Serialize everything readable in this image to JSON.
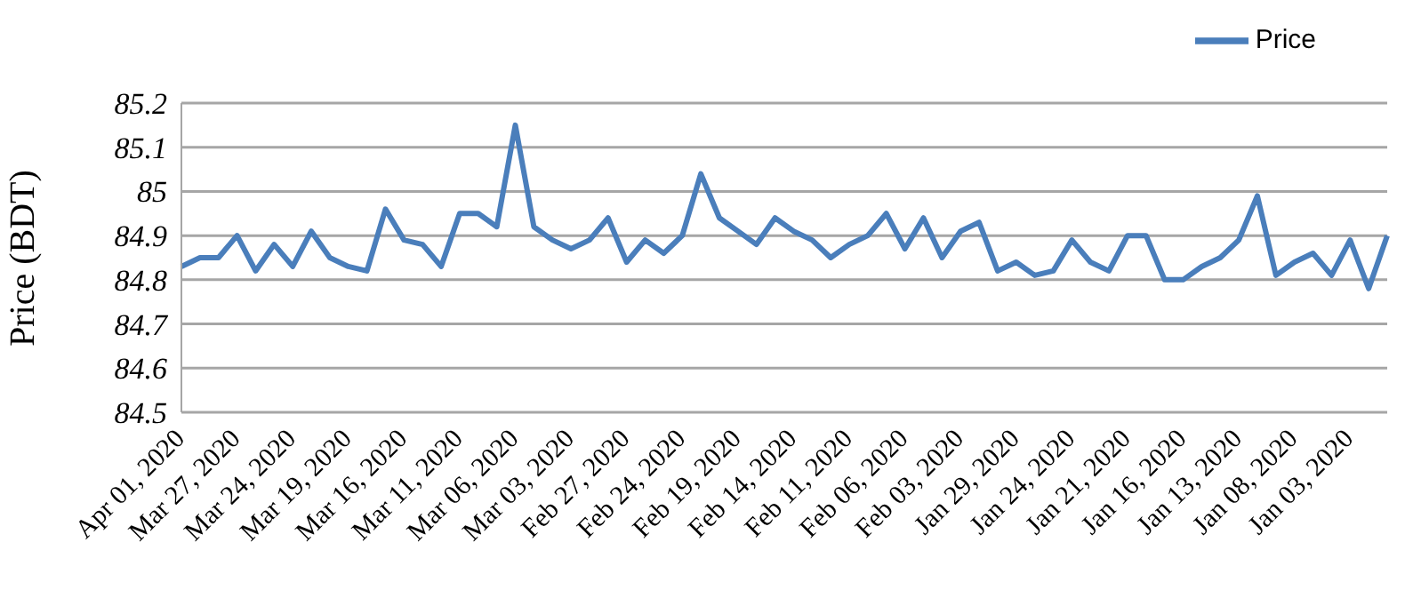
{
  "chart_data": {
    "type": "line",
    "ylabel": "Price (BDT)",
    "categories": [
      "Apr 01, 2020",
      null,
      null,
      "Mar 27, 2020",
      null,
      null,
      "Mar 24, 2020",
      null,
      null,
      "Mar 19, 2020",
      null,
      null,
      "Mar 16, 2020",
      null,
      null,
      "Mar 11, 2020",
      null,
      null,
      "Mar 06, 2020",
      null,
      null,
      "Mar 03, 2020",
      null,
      null,
      "Feb 27, 2020",
      null,
      null,
      "Feb 24, 2020",
      null,
      null,
      "Feb 19, 2020",
      null,
      null,
      "Feb 14, 2020",
      null,
      null,
      "Feb 11, 2020",
      null,
      null,
      "Feb 06, 2020",
      null,
      null,
      "Feb 03, 2020",
      null,
      null,
      "Jan 29, 2020",
      null,
      null,
      "Jan 24, 2020",
      null,
      null,
      "Jan 21, 2020",
      null,
      null,
      "Jan 16, 2020",
      null,
      null,
      "Jan 13, 2020",
      null,
      null,
      "Jan 08, 2020",
      null,
      null,
      "Jan 03, 2020",
      null,
      null
    ],
    "series": [
      {
        "name": "Price",
        "color": "#4a7ebb",
        "values": [
          84.83,
          84.85,
          84.85,
          84.9,
          84.82,
          84.88,
          84.83,
          84.91,
          84.85,
          84.83,
          84.82,
          84.96,
          84.89,
          84.88,
          84.83,
          84.95,
          84.95,
          84.92,
          85.15,
          84.92,
          84.89,
          84.87,
          84.89,
          84.94,
          84.84,
          84.89,
          84.86,
          84.9,
          85.04,
          84.94,
          84.91,
          84.88,
          84.94,
          84.91,
          84.89,
          84.85,
          84.88,
          84.9,
          84.95,
          84.87,
          84.94,
          84.85,
          84.91,
          84.93,
          84.82,
          84.84,
          84.81,
          84.82,
          84.89,
          84.84,
          84.82,
          84.9,
          84.9,
          84.8,
          84.8,
          84.83,
          84.85,
          84.89,
          84.99,
          84.81,
          84.84,
          84.86,
          84.81,
          84.89,
          84.78,
          84.9
        ]
      }
    ],
    "ylim": [
      84.5,
      85.2
    ],
    "yticks": [
      84.5,
      84.6,
      84.7,
      84.8,
      84.9,
      85,
      85.1,
      85.2
    ],
    "grid": "y",
    "legend": "top right",
    "marker": "none",
    "line_style": "solid"
  }
}
